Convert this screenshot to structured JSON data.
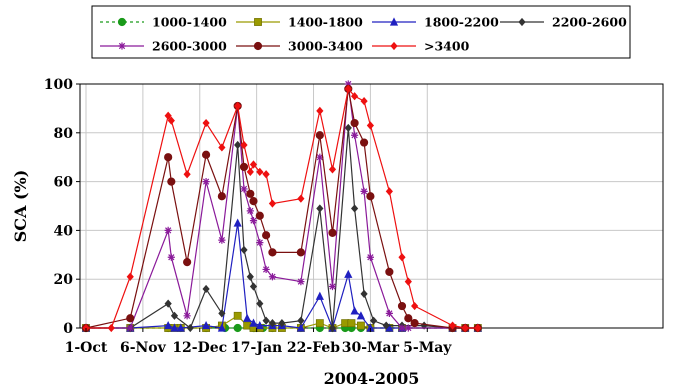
{
  "chart_data": {
    "type": "line",
    "xlabel": "2004-2005",
    "ylabel": "SCA (%)",
    "ylim": [
      0,
      100
    ],
    "yticks": [
      0,
      20,
      40,
      60,
      80,
      100
    ],
    "x_range_days": [
      0,
      200
    ],
    "xticks": [
      {
        "day": 0,
        "label": "1-Oct"
      },
      {
        "day": 36,
        "label": "6-Nov"
      },
      {
        "day": 72,
        "label": "12-Dec"
      },
      {
        "day": 108,
        "label": "17-Jan"
      },
      {
        "day": 144,
        "label": "22-Feb"
      },
      {
        "day": 180,
        "label": "30-Mar"
      },
      {
        "day": 216,
        "label": "5-May"
      }
    ],
    "grid": true,
    "legend_position": "top",
    "series": [
      {
        "name": "1000-1400",
        "color": "#1a9a1a",
        "marker": "circle",
        "dash": "3,3",
        "points": [
          [
            0,
            0
          ],
          [
            28,
            0
          ],
          [
            52,
            0
          ],
          [
            60,
            0
          ],
          [
            76,
            0
          ],
          [
            88,
            0
          ],
          [
            96,
            0
          ],
          [
            106,
            0
          ],
          [
            108,
            0
          ],
          [
            112,
            0
          ],
          [
            118,
            0
          ],
          [
            136,
            0
          ],
          [
            148,
            0
          ],
          [
            156,
            0
          ],
          [
            164,
            0
          ],
          [
            168,
            0
          ],
          [
            174,
            0
          ],
          [
            180,
            0
          ],
          [
            192,
            0
          ],
          [
            200,
            0
          ],
          [
            232,
            0
          ],
          [
            240,
            0
          ],
          [
            248,
            0
          ]
        ]
      },
      {
        "name": "1400-1800",
        "color": "#9a9a00",
        "marker": "square",
        "dash": "",
        "points": [
          [
            0,
            0
          ],
          [
            28,
            0
          ],
          [
            52,
            0
          ],
          [
            56,
            0
          ],
          [
            60,
            0
          ],
          [
            76,
            0
          ],
          [
            86,
            1
          ],
          [
            96,
            5
          ],
          [
            102,
            1
          ],
          [
            106,
            0
          ],
          [
            110,
            0
          ],
          [
            118,
            0
          ],
          [
            124,
            0
          ],
          [
            136,
            0
          ],
          [
            148,
            2
          ],
          [
            156,
            0
          ],
          [
            164,
            2
          ],
          [
            168,
            2
          ],
          [
            174,
            1
          ],
          [
            180,
            0
          ],
          [
            192,
            0
          ],
          [
            200,
            0
          ],
          [
            232,
            0
          ],
          [
            240,
            0
          ],
          [
            248,
            0
          ]
        ]
      },
      {
        "name": "1800-2200",
        "color": "#2020c0",
        "marker": "triangle",
        "dash": "",
        "points": [
          [
            0,
            0
          ],
          [
            28,
            0
          ],
          [
            52,
            1
          ],
          [
            56,
            0
          ],
          [
            60,
            0
          ],
          [
            76,
            1
          ],
          [
            86,
            0
          ],
          [
            96,
            43
          ],
          [
            102,
            4
          ],
          [
            106,
            2
          ],
          [
            110,
            1
          ],
          [
            118,
            1
          ],
          [
            124,
            1
          ],
          [
            136,
            0
          ],
          [
            148,
            13
          ],
          [
            156,
            0
          ],
          [
            166,
            22
          ],
          [
            170,
            7
          ],
          [
            174,
            5
          ],
          [
            180,
            0
          ],
          [
            192,
            0
          ],
          [
            200,
            0
          ],
          [
            232,
            0
          ],
          [
            240,
            0
          ],
          [
            248,
            0
          ]
        ]
      },
      {
        "name": "2200-2600",
        "color": "#333333",
        "marker": "diamond",
        "dash": "",
        "points": [
          [
            0,
            0
          ],
          [
            28,
            0
          ],
          [
            52,
            10
          ],
          [
            56,
            5
          ],
          [
            66,
            0
          ],
          [
            76,
            16
          ],
          [
            86,
            6
          ],
          [
            96,
            75
          ],
          [
            100,
            32
          ],
          [
            104,
            21
          ],
          [
            106,
            17
          ],
          [
            110,
            10
          ],
          [
            114,
            3
          ],
          [
            118,
            2
          ],
          [
            124,
            2
          ],
          [
            136,
            3
          ],
          [
            148,
            49
          ],
          [
            156,
            0
          ],
          [
            166,
            82
          ],
          [
            170,
            49
          ],
          [
            176,
            14
          ],
          [
            182,
            3
          ],
          [
            190,
            1
          ],
          [
            200,
            1
          ],
          [
            214,
            1
          ],
          [
            232,
            0
          ],
          [
            240,
            0
          ],
          [
            248,
            0
          ]
        ]
      },
      {
        "name": "2600-3000",
        "color": "#8a1a9a",
        "marker": "star",
        "dash": "",
        "points": [
          [
            0,
            0
          ],
          [
            28,
            0
          ],
          [
            52,
            40
          ],
          [
            54,
            29
          ],
          [
            64,
            5
          ],
          [
            76,
            60
          ],
          [
            86,
            36
          ],
          [
            96,
            91
          ],
          [
            100,
            57
          ],
          [
            104,
            48
          ],
          [
            106,
            44
          ],
          [
            110,
            35
          ],
          [
            114,
            24
          ],
          [
            118,
            21
          ],
          [
            136,
            19
          ],
          [
            148,
            70
          ],
          [
            156,
            17
          ],
          [
            166,
            100
          ],
          [
            170,
            79
          ],
          [
            176,
            56
          ],
          [
            180,
            29
          ],
          [
            192,
            6
          ],
          [
            200,
            0
          ],
          [
            204,
            0
          ],
          [
            232,
            0
          ],
          [
            240,
            0
          ],
          [
            248,
            0
          ]
        ]
      },
      {
        "name": "3000-3400",
        "color": "#7a1010",
        "marker": "circle",
        "dash": "",
        "points": [
          [
            0,
            0
          ],
          [
            28,
            4
          ],
          [
            52,
            70
          ],
          [
            54,
            60
          ],
          [
            64,
            27
          ],
          [
            76,
            71
          ],
          [
            86,
            54
          ],
          [
            96,
            91
          ],
          [
            100,
            66
          ],
          [
            104,
            55
          ],
          [
            106,
            52
          ],
          [
            110,
            46
          ],
          [
            114,
            38
          ],
          [
            118,
            31
          ],
          [
            136,
            31
          ],
          [
            148,
            79
          ],
          [
            156,
            39
          ],
          [
            166,
            98
          ],
          [
            170,
            84
          ],
          [
            176,
            76
          ],
          [
            180,
            54
          ],
          [
            192,
            23
          ],
          [
            200,
            9
          ],
          [
            204,
            4
          ],
          [
            208,
            2
          ],
          [
            232,
            0
          ],
          [
            240,
            0
          ],
          [
            248,
            0
          ]
        ]
      },
      {
        "name": ">3400",
        "color": "#ee1010",
        "marker": "diamond",
        "dash": "",
        "points": [
          [
            0,
            0
          ],
          [
            16,
            0
          ],
          [
            28,
            21
          ],
          [
            52,
            87
          ],
          [
            54,
            85
          ],
          [
            64,
            63
          ],
          [
            76,
            84
          ],
          [
            86,
            74
          ],
          [
            96,
            91
          ],
          [
            100,
            75
          ],
          [
            104,
            64
          ],
          [
            106,
            67
          ],
          [
            110,
            64
          ],
          [
            114,
            63
          ],
          [
            118,
            51
          ],
          [
            136,
            53
          ],
          [
            148,
            89
          ],
          [
            156,
            65
          ],
          [
            166,
            98
          ],
          [
            170,
            95
          ],
          [
            176,
            93
          ],
          [
            180,
            83
          ],
          [
            192,
            56
          ],
          [
            200,
            29
          ],
          [
            204,
            19
          ],
          [
            208,
            9
          ],
          [
            232,
            1
          ],
          [
            240,
            0
          ],
          [
            248,
            0
          ]
        ]
      }
    ]
  }
}
